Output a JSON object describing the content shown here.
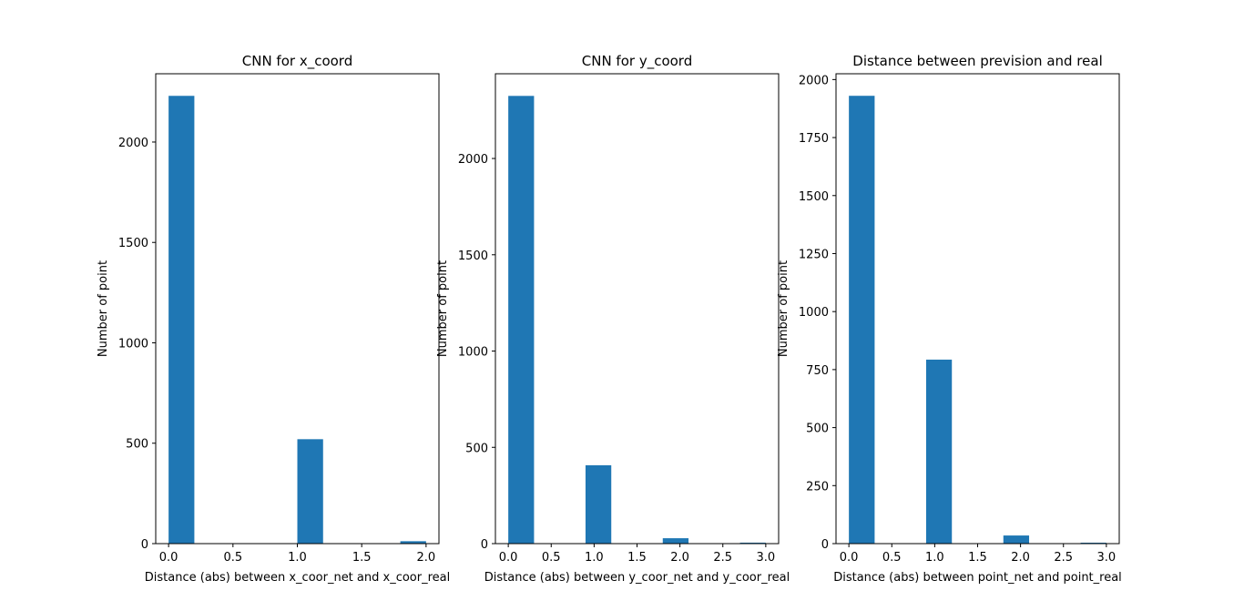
{
  "chart_data": [
    {
      "type": "bar",
      "title": "CNN for x_coord",
      "xlabel": "Distance (abs) between x_coor_net and x_coor_real",
      "ylabel": "Number of point",
      "xlim": [
        -0.1,
        2.1
      ],
      "ylim": [
        0,
        2340
      ],
      "xticks": [
        0.0,
        0.5,
        1.0,
        1.5,
        2.0
      ],
      "xtick_labels": [
        "0.0",
        "0.5",
        "1.0",
        "1.5",
        "2.0"
      ],
      "yticks": [
        0,
        500,
        1000,
        1500,
        2000
      ],
      "ytick_labels": [
        "0",
        "500",
        "1000",
        "1500",
        "2000"
      ],
      "bins": [
        {
          "x0": 0.0,
          "x1": 0.2,
          "count": 2230
        },
        {
          "x0": 1.0,
          "x1": 1.2,
          "count": 520
        },
        {
          "x0": 1.8,
          "x1": 2.0,
          "count": 12
        }
      ],
      "grid": false,
      "color": "#1f77b4"
    },
    {
      "type": "bar",
      "title": "CNN for y_coord",
      "xlabel": "Distance (abs) between y_coor_net and y_coor_real",
      "ylabel": "Number of point",
      "xlim": [
        -0.15,
        3.15
      ],
      "ylim": [
        0,
        2440
      ],
      "xticks": [
        0.0,
        0.5,
        1.0,
        1.5,
        2.0,
        2.5,
        3.0
      ],
      "xtick_labels": [
        "0.0",
        "0.5",
        "1.0",
        "1.5",
        "2.0",
        "2.5",
        "3.0"
      ],
      "yticks": [
        0,
        500,
        1000,
        1500,
        2000
      ],
      "ytick_labels": [
        "0",
        "500",
        "1000",
        "1500",
        "2000"
      ],
      "bins": [
        {
          "x0": 0.0,
          "x1": 0.3,
          "count": 2325
        },
        {
          "x0": 0.9,
          "x1": 1.2,
          "count": 407
        },
        {
          "x0": 1.8,
          "x1": 2.1,
          "count": 28
        },
        {
          "x0": 2.7,
          "x1": 3.0,
          "count": 5
        }
      ],
      "grid": false,
      "color": "#1f77b4"
    },
    {
      "type": "bar",
      "title": "Distance between prevision and real",
      "xlabel": "Distance (abs) between point_net and point_real",
      "ylabel": "Number of point",
      "xlim": [
        -0.15,
        3.15
      ],
      "ylim": [
        0,
        2025
      ],
      "xticks": [
        0.0,
        0.5,
        1.0,
        1.5,
        2.0,
        2.5,
        3.0
      ],
      "xtick_labels": [
        "0.0",
        "0.5",
        "1.0",
        "1.5",
        "2.0",
        "2.5",
        "3.0"
      ],
      "yticks": [
        0,
        250,
        500,
        750,
        1000,
        1250,
        1500,
        1750,
        2000
      ],
      "ytick_labels": [
        "0",
        "250",
        "500",
        "750",
        "1000",
        "1250",
        "1500",
        "1750",
        "2000"
      ],
      "bins": [
        {
          "x0": 0.0,
          "x1": 0.3,
          "count": 1930
        },
        {
          "x0": 0.9,
          "x1": 1.2,
          "count": 793
        },
        {
          "x0": 1.8,
          "x1": 2.1,
          "count": 35
        },
        {
          "x0": 2.7,
          "x1": 3.0,
          "count": 4
        }
      ],
      "grid": false,
      "color": "#1f77b4"
    }
  ]
}
